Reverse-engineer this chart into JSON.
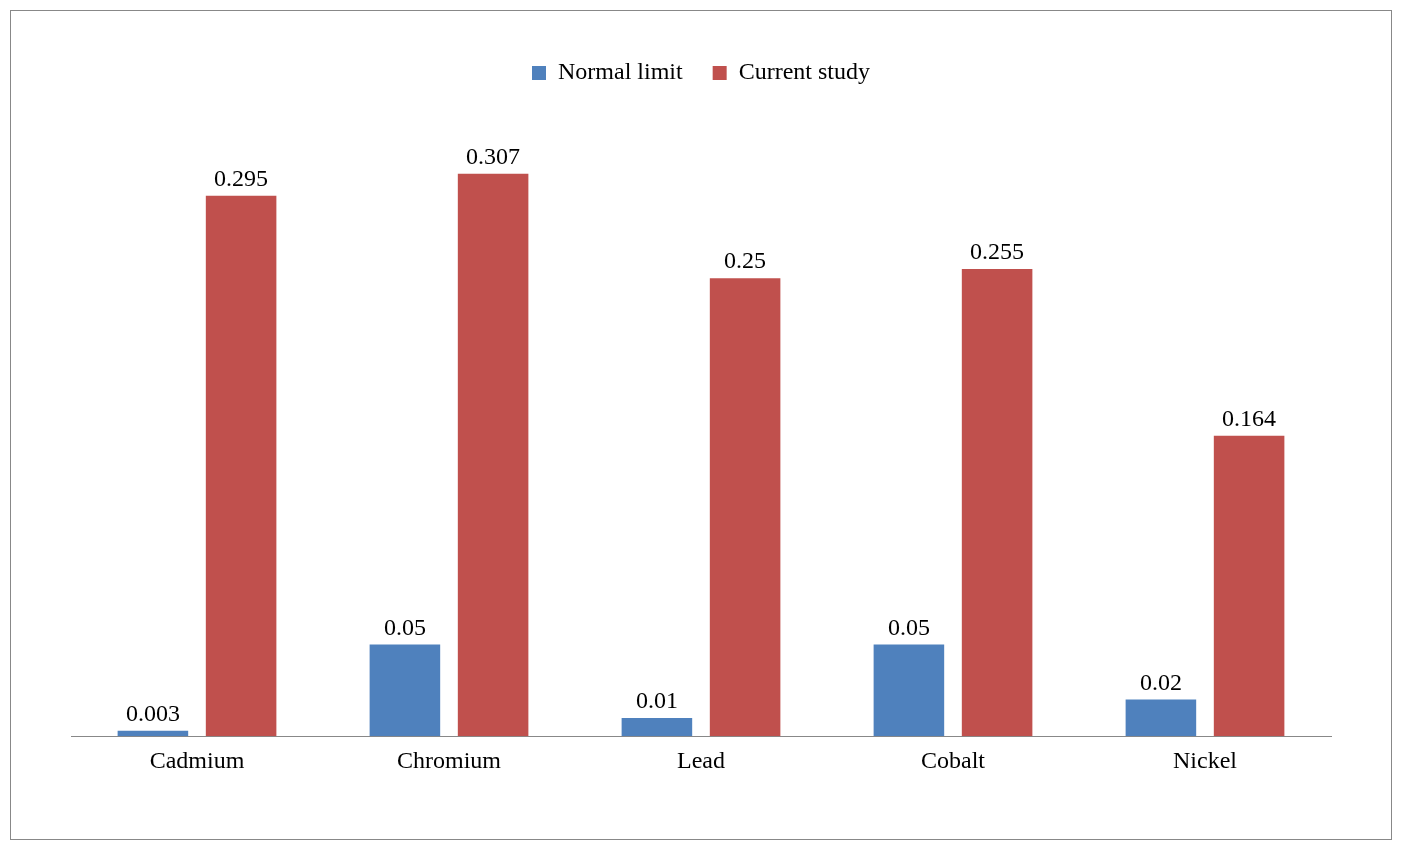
{
  "chart_data": {
    "type": "bar",
    "categories": [
      "Cadmium",
      "Chromium",
      "Lead",
      "Cobalt",
      "Nickel"
    ],
    "series": [
      {
        "name": "Normal limit",
        "color": "#4f81bd",
        "values": [
          0.003,
          0.05,
          0.01,
          0.05,
          0.02
        ]
      },
      {
        "name": "Current study",
        "color": "#c0504d",
        "values": [
          0.295,
          0.307,
          0.25,
          0.255,
          0.164
        ]
      }
    ],
    "data_labels": true,
    "legend": "top",
    "grid": false,
    "tick_labels": "x"
  }
}
